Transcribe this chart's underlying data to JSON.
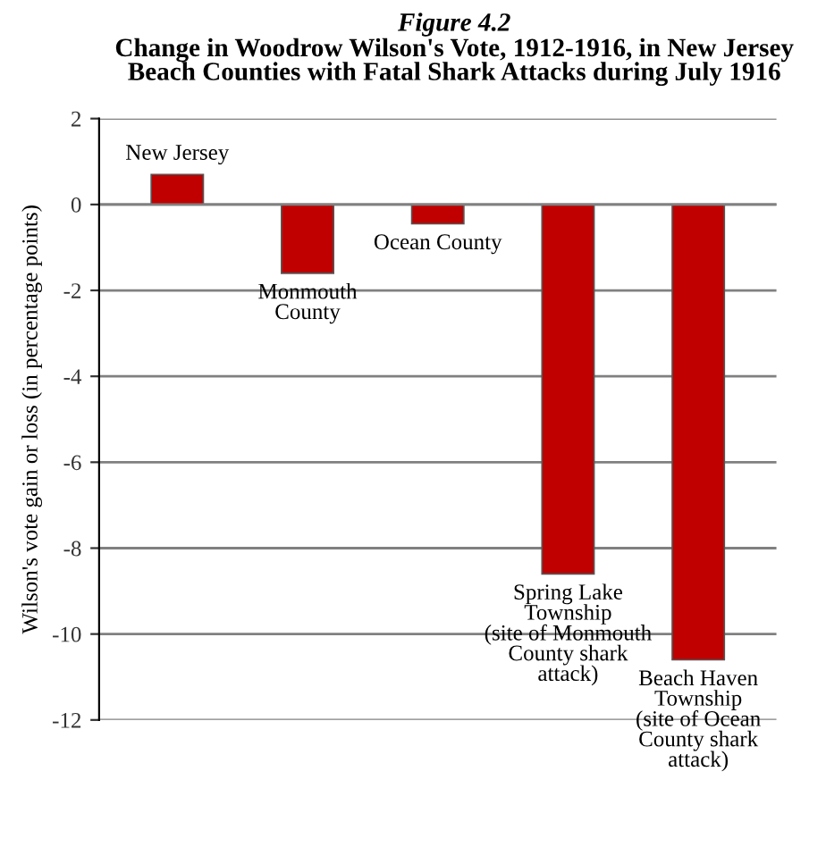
{
  "chart_data": {
    "type": "bar",
    "subtitle": "Figure 4.2",
    "title": "Change in Woodrow Wilson's Vote, 1912-1916, in New Jersey\nBeach Counties with Fatal Shark Attacks during July 1916",
    "ylabel": "Wilson's vote gain or loss (in percentage points)",
    "categories": [
      "New Jersey",
      "Monmouth\nCounty",
      "Ocean County",
      "Spring Lake\nTownship\n(site of Monmouth\nCounty shark\nattack)",
      "Beach Haven\nTownship\n(site of Ocean\nCounty shark\nattack)"
    ],
    "values": [
      0.7,
      -1.6,
      -0.45,
      -8.6,
      -10.6
    ],
    "color": "#c00000",
    "ylim": [
      -12,
      2
    ],
    "yticks": [
      2,
      0,
      -2,
      -4,
      -6,
      -8,
      -10,
      -12
    ],
    "grid": "y"
  }
}
